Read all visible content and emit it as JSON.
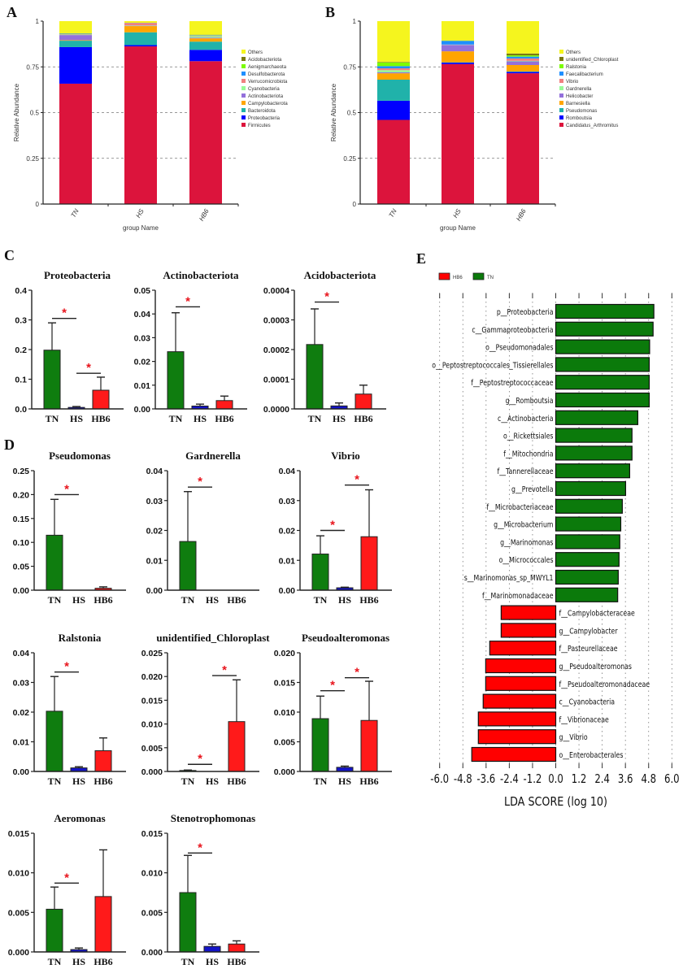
{
  "panel_letters": {
    "a": "A",
    "b": "B",
    "c": "C",
    "d": "D",
    "e": "E"
  },
  "groups": [
    "TN",
    "HS",
    "HB6"
  ],
  "group_colors": {
    "TN": "#0f7d0f",
    "HS": "#1414c8",
    "HB6": "#ff1a1a"
  },
  "chart_data": [
    {
      "id": "A",
      "type": "bar",
      "stacked": true,
      "xlabel": "group Name",
      "ylabel": "Relative Abundance",
      "categories": [
        "TN",
        "HS",
        "HB6"
      ],
      "ylim": [
        0,
        1
      ],
      "yticks": [
        "0",
        "0.25",
        "0.5",
        "0.75",
        "1"
      ],
      "grid": "dashed horizontal",
      "legend_position": "right",
      "series": [
        {
          "name": "Others",
          "color": "#f5f51e",
          "values": [
            0.067,
            0.009,
            0.074
          ]
        },
        {
          "name": "Acidobacteriota",
          "color": "#7a7a10",
          "values": [
            0.001,
            0,
            0.001
          ]
        },
        {
          "name": "Aenigmarchaeota",
          "color": "#7cfc00",
          "values": [
            0.001,
            0,
            0.002
          ]
        },
        {
          "name": "Desulfobacterota",
          "color": "#1e8fff",
          "values": [
            0.002,
            0.001,
            0.002
          ]
        },
        {
          "name": "Verrucomicrobiota",
          "color": "#f08080",
          "values": [
            0.002,
            0.013,
            0.003
          ]
        },
        {
          "name": "Cyanobacteria",
          "color": "#98fb98",
          "values": [
            0.003,
            0.002,
            0.008
          ]
        },
        {
          "name": "Actinobacteriota",
          "color": "#9370db",
          "values": [
            0.028,
            0.002,
            0.004
          ]
        },
        {
          "name": "Campylobacterota",
          "color": "#ffa500",
          "values": [
            0.003,
            0.034,
            0.018
          ]
        },
        {
          "name": "Bacteroidota",
          "color": "#20b2aa",
          "values": [
            0.035,
            0.07,
            0.045
          ]
        },
        {
          "name": "Proteobacteria",
          "color": "#0000ff",
          "values": [
            0.2,
            0.007,
            0.062
          ]
        },
        {
          "name": "Firmicutes",
          "color": "#dc143c",
          "values": [
            0.658,
            0.862,
            0.781
          ]
        }
      ]
    },
    {
      "id": "B",
      "type": "bar",
      "stacked": true,
      "xlabel": "group Name",
      "ylabel": "Relative Abundance",
      "categories": [
        "TN",
        "HS",
        "HB6"
      ],
      "ylim": [
        0,
        1
      ],
      "yticks": [
        "0",
        "0.25",
        "0.5",
        "0.75",
        "1"
      ],
      "grid": "dashed horizontal",
      "legend_position": "right",
      "series": [
        {
          "name": "Others",
          "color": "#f5f51e",
          "values": [
            0.223,
            0.106,
            0.177
          ]
        },
        {
          "name": "unidentified_Chloroplast",
          "color": "#7a7a10",
          "values": [
            0.003,
            0.001,
            0.01
          ]
        },
        {
          "name": "Ralstonia",
          "color": "#7cfc00",
          "values": [
            0.02,
            0.001,
            0.007
          ]
        },
        {
          "name": "Faecalibacterium",
          "color": "#1e8fff",
          "values": [
            0.012,
            0.02,
            0.01
          ]
        },
        {
          "name": "Vibrio",
          "color": "#f08080",
          "values": [
            0.01,
            0.001,
            0.013
          ]
        },
        {
          "name": "Gardnerella",
          "color": "#98fb98",
          "values": [
            0.012,
            0.001,
            0.003
          ]
        },
        {
          "name": "Helicobacter",
          "color": "#9370db",
          "values": [
            0.005,
            0.035,
            0.02
          ]
        },
        {
          "name": "Barnesiella",
          "color": "#ffa500",
          "values": [
            0.035,
            0.06,
            0.035
          ]
        },
        {
          "name": "Pseudomonas",
          "color": "#20b2aa",
          "values": [
            0.115,
            0.002,
            0.003
          ]
        },
        {
          "name": "Romboutsia",
          "color": "#0000ff",
          "values": [
            0.105,
            0.008,
            0.007
          ]
        },
        {
          "name": "Candidatus_Arthromitus",
          "color": "#dc143c",
          "values": [
            0.46,
            0.765,
            0.715
          ]
        }
      ]
    },
    {
      "id": "C",
      "type": "bar",
      "categories": [
        "TN",
        "HS",
        "HB6"
      ],
      "panels": [
        {
          "title": "Proteobacteria",
          "ylim": [
            0,
            0.4
          ],
          "yticks": [
            "0.0",
            "0.1",
            "0.2",
            "0.3",
            "0.4"
          ],
          "values": [
            0.198,
            0.005,
            0.063
          ],
          "error_upper": [
            0.29,
            0.008,
            0.107
          ],
          "significance": [
            {
              "pair": [
                0,
                1
              ],
              "level": 0.305,
              "mark": "*"
            },
            {
              "pair": [
                1,
                2
              ],
              "level": 0.12,
              "mark": "*"
            }
          ]
        },
        {
          "title": "Actinobacteriota",
          "ylim": [
            0,
            0.05
          ],
          "yticks": [
            "0.00",
            "0.01",
            "0.02",
            "0.03",
            "0.04",
            "0.05"
          ],
          "values": [
            0.0241,
            0.0012,
            0.0035
          ],
          "error_upper": [
            0.0405,
            0.002,
            0.0054
          ],
          "significance": [
            {
              "pair": [
                0,
                1
              ],
              "level": 0.043,
              "mark": "*"
            }
          ]
        },
        {
          "title": "Acidobacteriota",
          "ylim": [
            0,
            0.0004
          ],
          "yticks": [
            "0.0000",
            "0.0001",
            "0.0002",
            "0.0003",
            "0.0004"
          ],
          "values": [
            0.000217,
            1e-05,
            5e-05
          ],
          "error_upper": [
            0.000337,
            2e-05,
            8e-05
          ],
          "significance": [
            {
              "pair": [
                0,
                1
              ],
              "level": 0.00036,
              "mark": "*"
            }
          ]
        }
      ]
    },
    {
      "id": "D",
      "type": "bar",
      "categories": [
        "TN",
        "HS",
        "HB6"
      ],
      "panels": [
        {
          "title": "Pseudomonas",
          "ylim": [
            0,
            0.25
          ],
          "yticks": [
            "0.00",
            "0.05",
            "0.10",
            "0.15",
            "0.20",
            "0.25"
          ],
          "values": [
            0.115,
            0,
            0.004
          ],
          "error_upper": [
            0.19,
            0,
            0.007
          ],
          "significance": [
            {
              "pair": [
                0,
                1
              ],
              "level": 0.2,
              "mark": "*"
            }
          ]
        },
        {
          "title": "Gardnerella",
          "ylim": [
            0,
            0.04
          ],
          "yticks": [
            "0.00",
            "0.01",
            "0.02",
            "0.03",
            "0.04"
          ],
          "values": [
            0.0163,
            0,
            0
          ],
          "error_upper": [
            0.033,
            0,
            0
          ],
          "significance": [
            {
              "pair": [
                0,
                1
              ],
              "level": 0.0345,
              "mark": "*"
            }
          ]
        },
        {
          "title": "Vibrio",
          "ylim": [
            0,
            0.04
          ],
          "yticks": [
            "0.00",
            "0.01",
            "0.02",
            "0.03",
            "0.04"
          ],
          "values": [
            0.0121,
            0.0008,
            0.0179
          ],
          "error_upper": [
            0.0182,
            0.001,
            0.0336
          ],
          "significance": [
            {
              "pair": [
                0,
                1
              ],
              "level": 0.02,
              "mark": "*"
            },
            {
              "pair": [
                1,
                2
              ],
              "level": 0.0352,
              "mark": "*"
            }
          ]
        },
        {
          "title": "Ralstonia",
          "ylim": [
            0,
            0.04
          ],
          "yticks": [
            "0.00",
            "0.01",
            "0.02",
            "0.03",
            "0.04"
          ],
          "values": [
            0.0203,
            0.0012,
            0.007
          ],
          "error_upper": [
            0.032,
            0.0016,
            0.0113
          ],
          "significance": [
            {
              "pair": [
                0,
                1
              ],
              "level": 0.0335,
              "mark": "*"
            }
          ]
        },
        {
          "title": "unidentified_Chloroplast",
          "ylim": [
            0,
            0.025
          ],
          "yticks": [
            "0.000",
            "0.005",
            "0.010",
            "0.015",
            "0.020",
            "0.025"
          ],
          "values": [
            0.0002,
            0,
            0.0105
          ],
          "error_upper": [
            0.0003,
            0,
            0.0193
          ],
          "significance": [
            {
              "pair": [
                0,
                1
              ],
              "level": 0.0015,
              "mark": "*"
            },
            {
              "pair": [
                1,
                2
              ],
              "level": 0.0202,
              "mark": "*"
            }
          ]
        },
        {
          "title": "Pseudoalteromonas",
          "ylim": [
            0,
            0.02
          ],
          "yticks": [
            "0.000",
            "0.005",
            "0.010",
            "0.015",
            "0.020"
          ],
          "values": [
            0.0089,
            0.0007,
            0.0086
          ],
          "error_upper": [
            0.0127,
            0.0009,
            0.0152
          ],
          "significance": [
            {
              "pair": [
                0,
                1
              ],
              "level": 0.0136,
              "mark": "*"
            },
            {
              "pair": [
                1,
                2
              ],
              "level": 0.0158,
              "mark": "*"
            }
          ]
        },
        {
          "title": "Aeromonas",
          "ylim": [
            0,
            0.015
          ],
          "yticks": [
            "0.000",
            "0.005",
            "0.010",
            "0.015"
          ],
          "values": [
            0.0054,
            0.0003,
            0.007
          ],
          "error_upper": [
            0.0082,
            0.0005,
            0.0129
          ],
          "significance": [
            {
              "pair": [
                0,
                1
              ],
              "level": 0.0087,
              "mark": "*"
            }
          ]
        },
        {
          "title": "Stenotrophomonas",
          "ylim": [
            0,
            0.015
          ],
          "yticks": [
            "0.000",
            "0.005",
            "0.010",
            "0.015"
          ],
          "values": [
            0.0075,
            0.0007,
            0.001
          ],
          "error_upper": [
            0.0122,
            0.001,
            0.0014
          ],
          "significance": [
            {
              "pair": [
                0,
                1
              ],
              "level": 0.0125,
              "mark": "*"
            }
          ]
        }
      ]
    },
    {
      "id": "E",
      "type": "bar",
      "orientation": "horizontal",
      "xlabel": "LDA SCORE (log 10)",
      "xlim": [
        -6,
        6
      ],
      "xticks": [
        "-6.0",
        "-4.8",
        "-3.6",
        "-2.4",
        "-1.2",
        "0.0",
        "1.2",
        "2.4",
        "3.6",
        "4.8",
        "6.0"
      ],
      "grid": "dotted vertical",
      "legend_position": "top-left",
      "legend": [
        {
          "name": "HB6",
          "color": "#ff0000"
        },
        {
          "name": "TN",
          "color": "#0b7a0b"
        }
      ],
      "features": [
        {
          "label": "p__Proteobacteria",
          "value": 5.07,
          "group": "TN"
        },
        {
          "label": "c__Gammaproteobacteria",
          "value": 5.03,
          "group": "TN"
        },
        {
          "label": "o__Pseudomonadales",
          "value": 4.85,
          "group": "TN"
        },
        {
          "label": "o__Peptostreptococcales_Tissierellales",
          "value": 4.83,
          "group": "TN"
        },
        {
          "label": "f__Peptostreptococcaceae",
          "value": 4.83,
          "group": "TN"
        },
        {
          "label": "g__Romboutsia",
          "value": 4.83,
          "group": "TN"
        },
        {
          "label": "c__Actinobacteria",
          "value": 4.24,
          "group": "TN"
        },
        {
          "label": "o__Rickettsiales",
          "value": 3.94,
          "group": "TN"
        },
        {
          "label": "f__Mitochondria",
          "value": 3.94,
          "group": "TN"
        },
        {
          "label": "f__Tannerellaceae",
          "value": 3.82,
          "group": "TN"
        },
        {
          "label": "g__Prevotella",
          "value": 3.61,
          "group": "TN"
        },
        {
          "label": "f__Microbacteriaceae",
          "value": 3.44,
          "group": "TN"
        },
        {
          "label": "g__Microbacterium",
          "value": 3.36,
          "group": "TN"
        },
        {
          "label": "g__Marinomonas",
          "value": 3.31,
          "group": "TN"
        },
        {
          "label": "o__Micrococcales",
          "value": 3.27,
          "group": "TN"
        },
        {
          "label": "s__Marinomonas_sp_MWYL1",
          "value": 3.23,
          "group": "TN"
        },
        {
          "label": "f__Marinomonadaceae",
          "value": 3.2,
          "group": "TN"
        },
        {
          "label": "f__Campylobacteraceae",
          "value": -2.82,
          "group": "HB6"
        },
        {
          "label": "g__Campylobacter",
          "value": -2.82,
          "group": "HB6"
        },
        {
          "label": "f__Pasteurellaceae",
          "value": -3.41,
          "group": "HB6"
        },
        {
          "label": "g__Pseudoalteromonas",
          "value": -3.62,
          "group": "HB6"
        },
        {
          "label": "f__Pseudoalteromonadaceae",
          "value": -3.62,
          "group": "HB6"
        },
        {
          "label": "c__Cyanobacteria",
          "value": -3.75,
          "group": "HB6"
        },
        {
          "label": "f__Vibrionaceae",
          "value": -4.0,
          "group": "HB6"
        },
        {
          "label": "g__Vibrio",
          "value": -4.0,
          "group": "HB6"
        },
        {
          "label": "o__Enterobacterales",
          "value": -4.34,
          "group": "HB6"
        }
      ]
    }
  ]
}
